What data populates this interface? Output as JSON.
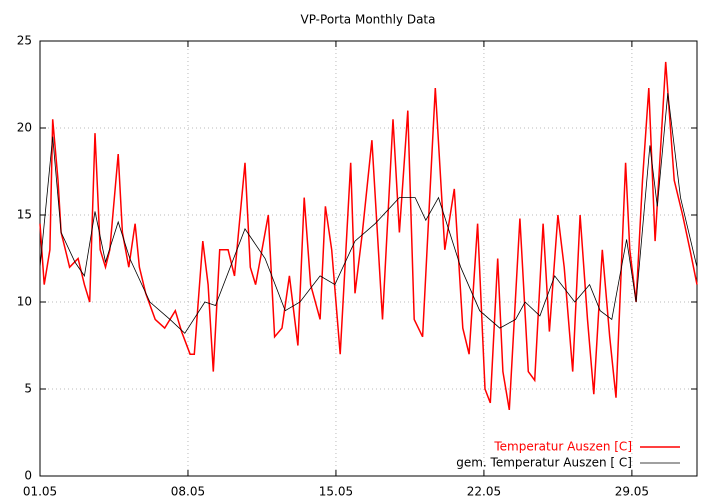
{
  "chart_data": {
    "type": "line",
    "title": "VP-Porta Monthly Data",
    "xlim": [
      1,
      32.08
    ],
    "ylim": [
      0,
      25
    ],
    "xticks": [
      {
        "value": 1,
        "label": "01.05"
      },
      {
        "value": 8,
        "label": "08.05"
      },
      {
        "value": 15,
        "label": "15.05"
      },
      {
        "value": 22,
        "label": "22.05"
      },
      {
        "value": 29,
        "label": "29.05"
      }
    ],
    "yticks": [
      0,
      5,
      10,
      15,
      20,
      25
    ],
    "grid": true,
    "legend": "bottom-right",
    "series": [
      {
        "name": "Temperatur Auszen [C]",
        "color": "#ff0000",
        "x": [
          1,
          1.2,
          1.47,
          1.6,
          1.85,
          2.0,
          2.2,
          2.4,
          2.8,
          3.1,
          3.35,
          3.6,
          3.85,
          4.1,
          4.3,
          4.7,
          4.9,
          5.2,
          5.5,
          5.7,
          6.0,
          6.45,
          6.9,
          7.4,
          7.7,
          8.1,
          8.3,
          8.7,
          8.95,
          9.2,
          9.5,
          9.9,
          10.2,
          10.7,
          10.95,
          11.2,
          11.5,
          11.8,
          12.1,
          12.45,
          12.8,
          13.2,
          13.5,
          13.8,
          14.25,
          14.5,
          14.8,
          15.2,
          15.7,
          15.9,
          16.25,
          16.7,
          17.2,
          17.7,
          18.0,
          18.4,
          18.7,
          19.1,
          19.7,
          20.15,
          20.6,
          21.0,
          21.3,
          21.7,
          22.05,
          22.3,
          22.65,
          22.9,
          23.2,
          23.7,
          24.1,
          24.4,
          24.8,
          25.1,
          25.5,
          25.8,
          26.2,
          26.55,
          26.9,
          27.2,
          27.6,
          27.95,
          28.25,
          28.7,
          28.9,
          29.2,
          29.5,
          29.8,
          30.1,
          30.6,
          31.0,
          31.4,
          31.75,
          32.08
        ],
        "values": [
          14.5,
          11,
          13,
          20.5,
          17,
          14,
          13,
          12,
          12.5,
          11,
          10,
          19.7,
          13,
          12,
          13,
          18.5,
          14,
          12,
          14.5,
          12,
          10.5,
          9,
          8.5,
          9.5,
          8.3,
          7,
          7,
          13.5,
          11,
          6,
          13,
          13,
          11.5,
          18,
          12,
          11,
          13,
          15,
          8,
          8.5,
          11.5,
          7.5,
          16,
          11,
          9,
          15.5,
          13,
          7,
          18,
          10.5,
          14,
          19.3,
          9,
          20.5,
          14,
          21,
          9,
          8,
          22.3,
          13,
          16.5,
          8.5,
          7,
          14.5,
          5,
          4.2,
          12.5,
          6,
          3.8,
          14.8,
          6,
          5.5,
          14.5,
          8.3,
          15,
          12,
          6,
          15,
          9,
          4.7,
          13,
          8,
          4.5,
          18,
          13,
          10,
          17,
          22.3,
          13.5,
          23.8,
          17,
          15,
          13,
          11
        ]
      },
      {
        "name": "gem. Temperatur Auszen [ C]",
        "color": "#000000",
        "x": [
          1,
          1.6,
          2.0,
          2.65,
          3.1,
          3.6,
          4.1,
          4.7,
          5.25,
          6.2,
          7.15,
          7.85,
          8.8,
          9.3,
          10.7,
          11.65,
          12.6,
          13.3,
          14.25,
          14.95,
          15.9,
          16.85,
          18.0,
          18.75,
          19.25,
          19.85,
          20.9,
          21.8,
          22.75,
          23.5,
          23.95,
          24.65,
          25.35,
          26.3,
          27.0,
          27.5,
          28.05,
          28.75,
          29.2,
          29.85,
          30.2,
          30.7,
          31.3,
          32.08
        ],
        "values": [
          12,
          19.5,
          14,
          12.3,
          11.5,
          15.2,
          12.3,
          14.6,
          12.5,
          10,
          9,
          8.2,
          10,
          9.8,
          14.2,
          12.5,
          9.5,
          10,
          11.5,
          11,
          13.5,
          14.5,
          16,
          16,
          14.7,
          16,
          12,
          9.5,
          8.5,
          9,
          10,
          9.2,
          11.5,
          10,
          11,
          9.5,
          9,
          13.6,
          10,
          19,
          15.5,
          22,
          16,
          12
        ]
      }
    ]
  }
}
